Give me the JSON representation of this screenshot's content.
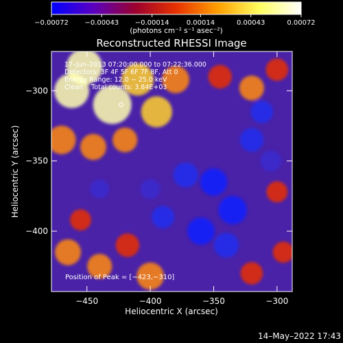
{
  "chart_data": {
    "type": "heatmap",
    "title": "Reconstructed RHESSI Image",
    "xlabel": "Heliocentric X (arcsec)",
    "ylabel": "Heliocentric Y (arcsec)",
    "xlim": [
      -478,
      -288
    ],
    "ylim": [
      -443,
      -272
    ],
    "x_ticks": [
      -450,
      -400,
      -350,
      -300
    ],
    "x_tick_labels": [
      "−450",
      "−400",
      "−350",
      "−300"
    ],
    "y_ticks": [
      -300,
      -350,
      -400
    ],
    "y_tick_labels": [
      "−300",
      "−350",
      "−400"
    ],
    "colorbar": {
      "range": [
        -0.00072,
        0.00072
      ],
      "ticks": [
        -0.00072,
        -0.00043,
        -0.00014,
        0.00014,
        0.00043,
        0.00072
      ],
      "tick_labels": [
        "−0.00072",
        "−0.00043",
        "−0.00014",
        "0.00014",
        "0.00043",
        "0.00072"
      ],
      "unit_label": "(photons cm⁻² s⁻¹ asec⁻²)",
      "colors": [
        "#0000ff",
        "#5a00c0",
        "#9a0030",
        "#e63200",
        "#ffa000",
        "#ffff60",
        "#ffffff"
      ]
    },
    "annotations": [
      "17–Jun–2013 07:20:00.000 to 07:22:36.000",
      "Detectors: 3F 4F 5F 6F 7F 8F, Att 0",
      "Energy Range: 12.0 − 25.0 keV",
      "Clean    Total counts: 3.84E+03"
    ],
    "peak_label": "Position of Peak = [−423,−310]",
    "peak_position": [
      -423,
      -310
    ],
    "blobs": [
      {
        "x": -452,
        "y": -283,
        "v": 0.9
      },
      {
        "x": -462,
        "y": -300,
        "v": 0.85
      },
      {
        "x": -430,
        "y": -310,
        "v": 1.0
      },
      {
        "x": -410,
        "y": -292,
        "v": 0.75
      },
      {
        "x": -395,
        "y": -315,
        "v": 0.7
      },
      {
        "x": -380,
        "y": -292,
        "v": 0.55
      },
      {
        "x": -470,
        "y": -335,
        "v": 0.6
      },
      {
        "x": -445,
        "y": -340,
        "v": 0.5
      },
      {
        "x": -420,
        "y": -335,
        "v": 0.45
      },
      {
        "x": -345,
        "y": -290,
        "v": 0.4
      },
      {
        "x": -320,
        "y": -298,
        "v": 0.45
      },
      {
        "x": -300,
        "y": -285,
        "v": 0.35
      },
      {
        "x": -465,
        "y": -415,
        "v": 0.5
      },
      {
        "x": -440,
        "y": -425,
        "v": 0.45
      },
      {
        "x": -418,
        "y": -410,
        "v": 0.4
      },
      {
        "x": -400,
        "y": -432,
        "v": 0.55
      },
      {
        "x": -455,
        "y": -392,
        "v": 0.3
      },
      {
        "x": -300,
        "y": -372,
        "v": 0.3
      },
      {
        "x": -320,
        "y": -430,
        "v": 0.35
      },
      {
        "x": -295,
        "y": -415,
        "v": 0.3
      },
      {
        "x": -350,
        "y": -365,
        "v": -0.55
      },
      {
        "x": -335,
        "y": -385,
        "v": -0.6
      },
      {
        "x": -360,
        "y": -400,
        "v": -0.55
      },
      {
        "x": -372,
        "y": -360,
        "v": -0.45
      },
      {
        "x": -320,
        "y": -335,
        "v": -0.4
      },
      {
        "x": -312,
        "y": -315,
        "v": -0.35
      },
      {
        "x": -390,
        "y": -390,
        "v": -0.35
      },
      {
        "x": -340,
        "y": -410,
        "v": -0.45
      },
      {
        "x": -305,
        "y": -350,
        "v": -0.3
      },
      {
        "x": -400,
        "y": -370,
        "v": -0.25
      },
      {
        "x": -440,
        "y": -370,
        "v": -0.2
      }
    ]
  },
  "footer": {
    "timestamp": "14–May–2022 17:43"
  }
}
